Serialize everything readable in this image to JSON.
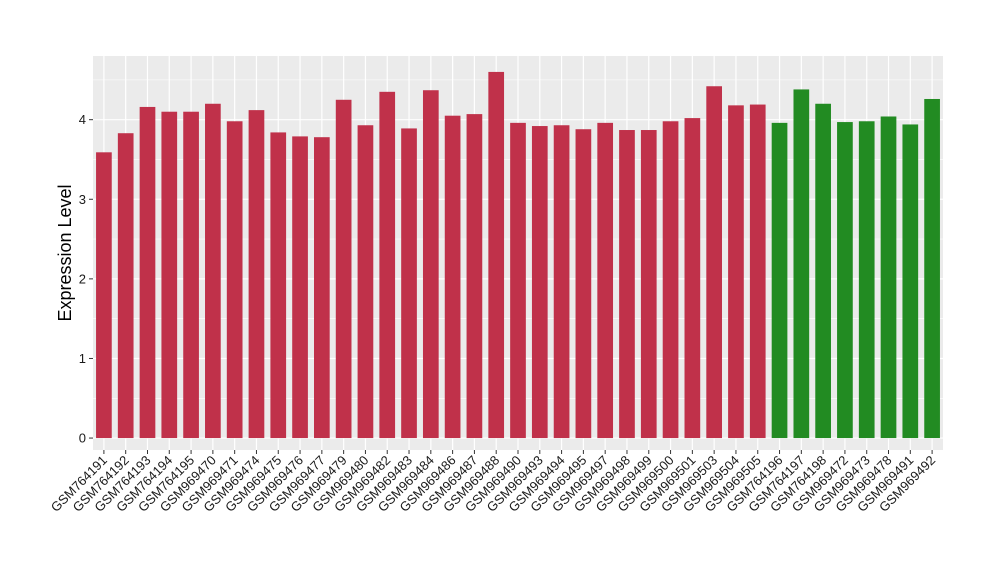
{
  "chart_data": {
    "type": "bar",
    "title": "",
    "xlabel": "",
    "ylabel": "Expression Level",
    "ylim": [
      -0.15,
      4.8
    ],
    "yticks": [
      0,
      1,
      2,
      3,
      4
    ],
    "grid": true,
    "background": "#ebebeb",
    "colors": {
      "red": "#c0314a",
      "green": "#228b22",
      "grid": "#ffffff"
    },
    "categories": [
      "GSM764191",
      "GSM764192",
      "GSM764193",
      "GSM764194",
      "GSM764195",
      "GSM969470",
      "GSM969471",
      "GSM969474",
      "GSM969475",
      "GSM969476",
      "GSM969477",
      "GSM969479",
      "GSM969480",
      "GSM969482",
      "GSM969483",
      "GSM969484",
      "GSM969486",
      "GSM969487",
      "GSM969488",
      "GSM969490",
      "GSM969493",
      "GSM969494",
      "GSM969495",
      "GSM969497",
      "GSM969498",
      "GSM969499",
      "GSM969500",
      "GSM969501",
      "GSM969503",
      "GSM969504",
      "GSM969505",
      "GSM764196",
      "GSM764197",
      "GSM764198",
      "GSM969472",
      "GSM969473",
      "GSM969478",
      "GSM969491",
      "GSM969492"
    ],
    "values": [
      3.59,
      3.83,
      4.16,
      4.1,
      4.1,
      4.2,
      3.98,
      4.12,
      3.84,
      3.79,
      3.78,
      4.25,
      3.93,
      4.35,
      3.89,
      4.37,
      4.05,
      4.07,
      4.6,
      3.96,
      3.92,
      3.93,
      3.88,
      3.96,
      3.87,
      3.87,
      3.98,
      4.02,
      4.42,
      4.18,
      4.19,
      3.96,
      4.38,
      4.2,
      3.97,
      3.98,
      4.04,
      3.94,
      4.26
    ],
    "bar_colors": [
      "red",
      "red",
      "red",
      "red",
      "red",
      "red",
      "red",
      "red",
      "red",
      "red",
      "red",
      "red",
      "red",
      "red",
      "red",
      "red",
      "red",
      "red",
      "red",
      "red",
      "red",
      "red",
      "red",
      "red",
      "red",
      "red",
      "red",
      "red",
      "red",
      "red",
      "red",
      "green",
      "green",
      "green",
      "green",
      "green",
      "green",
      "green",
      "green"
    ]
  }
}
